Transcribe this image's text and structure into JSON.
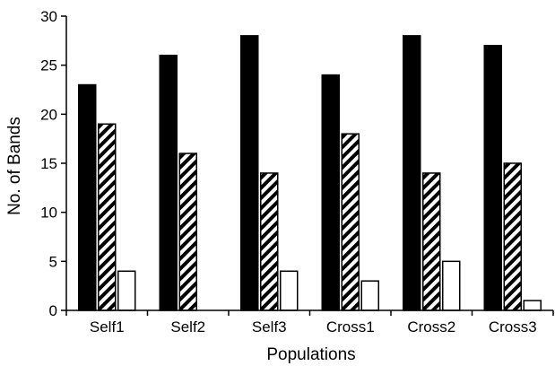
{
  "chart_data": {
    "type": "bar",
    "categories": [
      "Self1",
      "Self2",
      "Self3",
      "Cross1",
      "Cross2",
      "Cross3"
    ],
    "series": [
      {
        "values": [
          23,
          26,
          28,
          24,
          28,
          27
        ],
        "fill": "solid-black"
      },
      {
        "values": [
          19,
          16,
          14,
          18,
          14,
          15
        ],
        "fill": "diagonal-hatch"
      },
      {
        "values": [
          4,
          0,
          4,
          3,
          5,
          1
        ],
        "fill": "white"
      }
    ],
    "xlabel": "Populations",
    "ylabel": "No. of Bands",
    "ylim": [
      0,
      30
    ],
    "yticks": [
      0,
      5,
      10,
      15,
      20,
      25,
      30
    ],
    "grid": false,
    "colors": {
      "bar_black": "#000000",
      "bar_white": "#ffffff",
      "outline": "#000000"
    }
  }
}
